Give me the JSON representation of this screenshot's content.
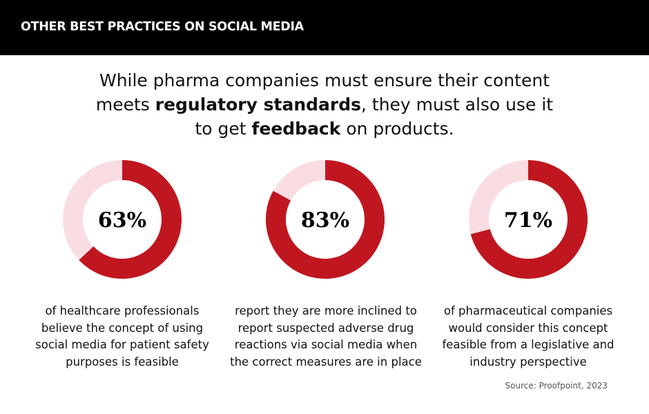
{
  "header": {
    "title": "OTHER BEST PRACTICES ON SOCIAL MEDIA"
  },
  "headline": {
    "line1": "While pharma companies must ensure their content",
    "line2_pre": "meets ",
    "line2_bold": "regulatory standards",
    "line2_post": ", they must also use it",
    "line3_pre": "to get ",
    "line3_bold": "feedback",
    "line3_post": " on products."
  },
  "colors": {
    "accent": "#c0161f",
    "track": "#f9dde2",
    "header_bg": "#000000"
  },
  "chart_data": [
    {
      "type": "pie",
      "label": "63%",
      "value": 63,
      "max": 100,
      "caption": [
        "of healthcare professionals",
        "believe the concept of using",
        "social media for patient safety",
        "purposes is feasible"
      ]
    },
    {
      "type": "pie",
      "label": "83%",
      "value": 83,
      "max": 100,
      "caption": [
        "report they are more inclined to",
        "report suspected adverse drug",
        "reactions via social media when",
        "the correct measures are in place"
      ]
    },
    {
      "type": "pie",
      "label": "71%",
      "value": 71,
      "max": 100,
      "caption": [
        "of pharmaceutical companies",
        "would consider this concept",
        "feasible from a legislative and",
        "industry perspective"
      ]
    }
  ],
  "source": "Source: Proofpoint, 2023"
}
